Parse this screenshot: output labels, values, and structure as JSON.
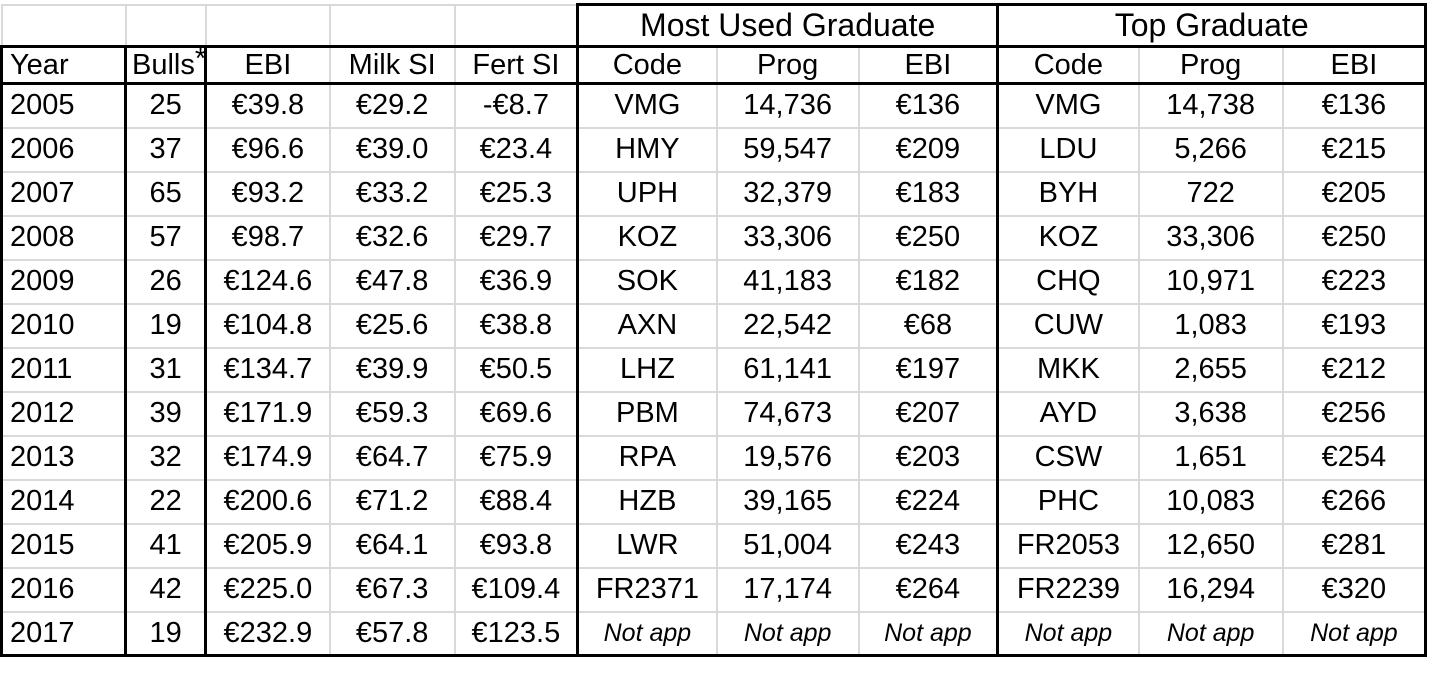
{
  "table": {
    "group_headers": [
      {
        "label": "",
        "span": 5
      },
      {
        "label": "Most Used Graduate",
        "span": 3
      },
      {
        "label": "Top Graduate",
        "span": 3
      }
    ],
    "columns": [
      "Year",
      "Bulls*",
      "EBI",
      "Milk SI",
      "Fert SI",
      "Code",
      "Prog",
      "EBI",
      "Code",
      "Prog",
      "EBI"
    ],
    "bulls_header_base": "Bulls",
    "bulls_header_asterisk": "*",
    "rows": [
      [
        "2005",
        "25",
        "€39.8",
        "€29.2",
        "-€8.7",
        "VMG",
        "14,736",
        "€136",
        "VMG",
        "14,738",
        "€136"
      ],
      [
        "2006",
        "37",
        "€96.6",
        "€39.0",
        "€23.4",
        "HMY",
        "59,547",
        "€209",
        "LDU",
        "5,266",
        "€215"
      ],
      [
        "2007",
        "65",
        "€93.2",
        "€33.2",
        "€25.3",
        "UPH",
        "32,379",
        "€183",
        "BYH",
        "722",
        "€205"
      ],
      [
        "2008",
        "57",
        "€98.7",
        "€32.6",
        "€29.7",
        "KOZ",
        "33,306",
        "€250",
        "KOZ",
        "33,306",
        "€250"
      ],
      [
        "2009",
        "26",
        "€124.6",
        "€47.8",
        "€36.9",
        "SOK",
        "41,183",
        "€182",
        "CHQ",
        "10,971",
        "€223"
      ],
      [
        "2010",
        "19",
        "€104.8",
        "€25.6",
        "€38.8",
        "AXN",
        "22,542",
        "€68",
        "CUW",
        "1,083",
        "€193"
      ],
      [
        "2011",
        "31",
        "€134.7",
        "€39.9",
        "€50.5",
        "LHZ",
        "61,141",
        "€197",
        "MKK",
        "2,655",
        "€212"
      ],
      [
        "2012",
        "39",
        "€171.9",
        "€59.3",
        "€69.6",
        "PBM",
        "74,673",
        "€207",
        "AYD",
        "3,638",
        "€256"
      ],
      [
        "2013",
        "32",
        "€174.9",
        "€64.7",
        "€75.9",
        "RPA",
        "19,576",
        "€203",
        "CSW",
        "1,651",
        "€254"
      ],
      [
        "2014",
        "22",
        "€200.6",
        "€71.2",
        "€88.4",
        "HZB",
        "39,165",
        "€224",
        "PHC",
        "10,083",
        "€266"
      ],
      [
        "2015",
        "41",
        "€205.9",
        "€64.1",
        "€93.8",
        "LWR",
        "51,004",
        "€243",
        "FR2053",
        "12,650",
        "€281"
      ],
      [
        "2016",
        "42",
        "€225.0",
        "€67.3",
        "€109.4",
        "FR2371",
        "17,174",
        "€264",
        "FR2239",
        "16,294",
        "€320"
      ],
      [
        "2017",
        "19",
        "€232.9",
        "€57.8",
        "€123.5",
        "Not app",
        "Not app",
        "Not app",
        "Not app",
        "Not app",
        "Not app"
      ]
    ],
    "not_applicable_label": "Not app",
    "colors": {
      "border_heavy": "#000000",
      "gridline": "#d9d9d9",
      "background": "#ffffff",
      "text": "#000000"
    }
  }
}
